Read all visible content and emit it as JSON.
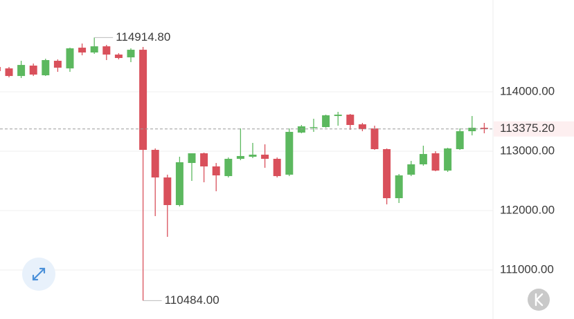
{
  "chart_data": {
    "type": "candlestick",
    "open": [
      114419,
      114395,
      114267,
      114442,
      114279,
      114523,
      114395,
      114744,
      114663,
      114767,
      114628,
      114581,
      114709,
      113023,
      112558,
      112093,
      112802,
      112965,
      112744,
      112581,
      112872,
      112907,
      112942,
      112872,
      112605,
      113314,
      113395,
      113407,
      113593,
      113616,
      113453,
      113384,
      113035,
      112209,
      112605,
      112779,
      112965,
      112674,
      113035,
      113337,
      113395
    ],
    "high": [
      114430,
      114419,
      114523,
      114477,
      114558,
      114547,
      114744,
      114814,
      114914.8,
      114791,
      114651,
      114733,
      114756,
      113047,
      112605,
      112907,
      112965,
      112977,
      112802,
      112895,
      113384,
      113140,
      113116,
      112895,
      113384,
      113442,
      113547,
      113616,
      113663,
      113628,
      113477,
      113430,
      113047,
      112616,
      112837,
      113093,
      113000,
      113058,
      113384,
      113593,
      113477
    ],
    "low": [
      114330,
      114244,
      114233,
      114267,
      114267,
      114337,
      114337,
      114616,
      114640,
      114535,
      114547,
      114500,
      110484,
      111907,
      111558,
      112070,
      112500,
      112477,
      112326,
      112558,
      112849,
      112884,
      112721,
      112558,
      112581,
      113302,
      113326,
      113395,
      113430,
      113360,
      113337,
      113023,
      112105,
      112128,
      112581,
      112756,
      112663,
      112651,
      113023,
      113267,
      113302
    ],
    "close": [
      114349,
      114267,
      114453,
      114291,
      114535,
      114407,
      114733,
      114663,
      114767,
      114628,
      114570,
      114709,
      113023,
      112558,
      112093,
      112814,
      112965,
      112744,
      112593,
      112872,
      112919,
      112942,
      112872,
      112581,
      113326,
      113419,
      113407,
      113605,
      113616,
      113442,
      113372,
      113035,
      112209,
      112593,
      112779,
      112953,
      112674,
      113047,
      113337,
      113395,
      113375.2
    ],
    "up_color": "#5cb85f",
    "down_color": "#d9505b",
    "ylim": [
      110174,
      115547
    ],
    "yticks": [
      {
        "value": 114000,
        "label": "114000.00"
      },
      {
        "value": 113000,
        "label": "113000.00"
      },
      {
        "value": 112000,
        "label": "112000.00"
      },
      {
        "value": 111000,
        "label": "111000.00"
      }
    ],
    "grid": true,
    "high_label": "114914.80",
    "low_label": "110484.00",
    "current_price": {
      "value": 113375.2,
      "label": "113375.20"
    }
  }
}
